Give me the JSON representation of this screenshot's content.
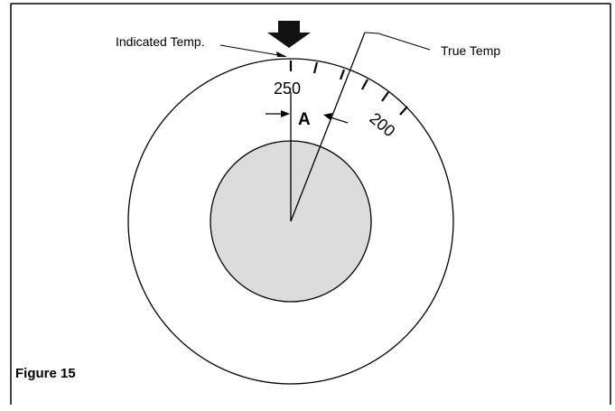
{
  "diagram": {
    "labels": {
      "indicated": "Indicated Temp.",
      "true_temp": "True Temp",
      "tick_250": "250",
      "tick_200": "200",
      "angle": "A"
    },
    "caption": "Figure 15",
    "colors": {
      "line": "#000000",
      "inner_fill": "#dcdcdc",
      "background": "#ffffff"
    }
  }
}
